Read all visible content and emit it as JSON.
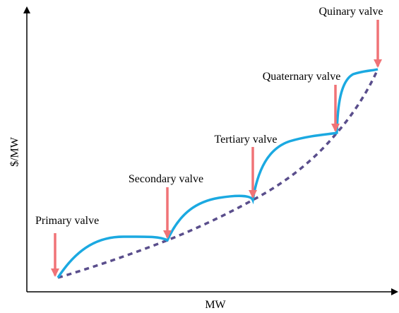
{
  "axes": {
    "y_label": "$/MW",
    "x_label": "MW"
  },
  "valves": [
    {
      "label": "Primary valve"
    },
    {
      "label": "Secondary valve"
    },
    {
      "label": "Tertiary valve"
    },
    {
      "label": "Quaternary valve"
    },
    {
      "label": "Quinary valve"
    }
  ]
}
